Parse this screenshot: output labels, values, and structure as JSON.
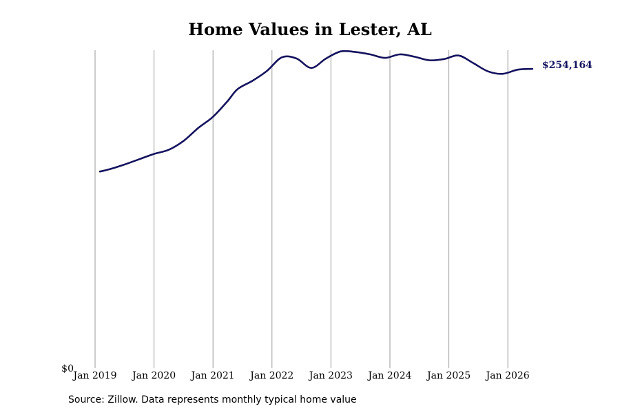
{
  "chart_data": {
    "type": "line",
    "title": "Home Values in Lester, AL",
    "x_tick_labels": [
      "Jan 2019",
      "Jan 2020",
      "Jan 2021",
      "Jan 2022",
      "Jan 2023",
      "Jan 2024",
      "Jan 2025",
      "Jan 2026"
    ],
    "y_tick_labels": [
      "$0"
    ],
    "ylim": [
      0,
      270000
    ],
    "xlim": [
      "2019-01",
      "2026-07"
    ],
    "grid": "vertical at year starts",
    "end_label": "$254,164",
    "series": [
      {
        "color": "#14125e",
        "points": [
          [
            "2019-02",
            167000
          ],
          [
            "2019-04",
            169000
          ],
          [
            "2019-07",
            173000
          ],
          [
            "2019-10",
            177500
          ],
          [
            "2020-01",
            182000
          ],
          [
            "2020-04",
            185500
          ],
          [
            "2020-07",
            193000
          ],
          [
            "2020-10",
            204000
          ],
          [
            "2021-01",
            213500
          ],
          [
            "2021-04",
            227000
          ],
          [
            "2021-06",
            237000
          ],
          [
            "2021-09",
            244000
          ],
          [
            "2021-12",
            252500
          ],
          [
            "2022-03",
            264000
          ],
          [
            "2022-06",
            263000
          ],
          [
            "2022-09",
            255000
          ],
          [
            "2022-12",
            263000
          ],
          [
            "2023-03",
            269000
          ],
          [
            "2023-06",
            268500
          ],
          [
            "2023-09",
            266500
          ],
          [
            "2023-12",
            263500
          ],
          [
            "2024-03",
            266500
          ],
          [
            "2024-06",
            264500
          ],
          [
            "2024-09",
            261500
          ],
          [
            "2024-12",
            262500
          ],
          [
            "2025-03",
            265500
          ],
          [
            "2025-06",
            259000
          ],
          [
            "2025-09",
            252000
          ],
          [
            "2025-12",
            250000
          ],
          [
            "2026-03",
            253500
          ],
          [
            "2026-06",
            254164
          ]
        ]
      }
    ]
  },
  "source_note": "Source: Zillow. Data represents monthly typical home value"
}
